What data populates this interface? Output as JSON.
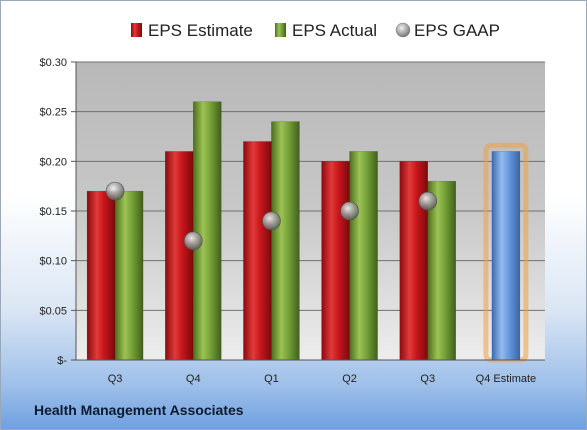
{
  "company": "Health Management Associates",
  "chart_data": {
    "type": "bar",
    "categories": [
      "Q3",
      "Q4",
      "Q1",
      "Q2",
      "Q3",
      "Q4 Estimate"
    ],
    "series": [
      {
        "name": "EPS Estimate",
        "color": "#c0141a",
        "values": [
          0.17,
          0.21,
          0.22,
          0.2,
          0.2,
          null
        ]
      },
      {
        "name": "EPS Actual",
        "color": "#6e9a2e",
        "values": [
          0.17,
          0.26,
          0.24,
          0.21,
          0.18,
          null
        ]
      },
      {
        "name": "EPS GAAP",
        "color": "#a8a8a8",
        "type": "scatter",
        "values": [
          0.17,
          0.12,
          0.14,
          0.15,
          0.16,
          null
        ]
      },
      {
        "color": "#5b8fd0",
        "highlight": "#f0a040",
        "values": [
          null,
          null,
          null,
          null,
          null,
          0.21
        ]
      }
    ],
    "yticks": [
      "$-",
      "$0.05",
      "$0.10",
      "$0.15",
      "$0.20",
      "$0.25",
      "$0.30"
    ],
    "ylim": [
      0,
      0.3
    ],
    "grid": true,
    "legend_position": "top"
  }
}
